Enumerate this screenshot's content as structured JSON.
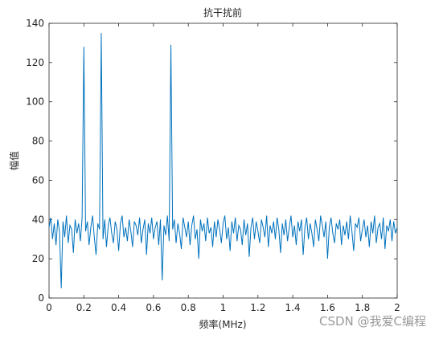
{
  "chart_data": {
    "type": "line",
    "title": "抗干扰前",
    "x_label": "频率(MHz)",
    "y_label": "幅值",
    "watermark": "CSDN @我爱C编程",
    "xlim": [
      0,
      2
    ],
    "ylim": [
      0,
      140
    ],
    "xticks": [
      0,
      0.2,
      0.4,
      0.6,
      0.8,
      1,
      1.2,
      1.4,
      1.6,
      1.8,
      2
    ],
    "yticks": [
      0,
      20,
      40,
      60,
      80,
      100,
      120,
      140
    ],
    "x": [
      0,
      0.01,
      0.02,
      0.03,
      0.04,
      0.05,
      0.06,
      0.07,
      0.08,
      0.09,
      0.1,
      0.11,
      0.12,
      0.13,
      0.14,
      0.15,
      0.16,
      0.17,
      0.18,
      0.19,
      0.2,
      0.21,
      0.22,
      0.23,
      0.24,
      0.25,
      0.26,
      0.27,
      0.28,
      0.29,
      0.3,
      0.31,
      0.32,
      0.33,
      0.34,
      0.35,
      0.36,
      0.37,
      0.38,
      0.39,
      0.4,
      0.41,
      0.42,
      0.43,
      0.44,
      0.45,
      0.46,
      0.47,
      0.48,
      0.49,
      0.5,
      0.51,
      0.52,
      0.53,
      0.54,
      0.55,
      0.56,
      0.57,
      0.58,
      0.59,
      0.6,
      0.61,
      0.62,
      0.63,
      0.64,
      0.65,
      0.66,
      0.67,
      0.68,
      0.69,
      0.7,
      0.71,
      0.72,
      0.73,
      0.74,
      0.75,
      0.76,
      0.77,
      0.78,
      0.79,
      0.8,
      0.81,
      0.82,
      0.83,
      0.84,
      0.85,
      0.86,
      0.87,
      0.88,
      0.89,
      0.9,
      0.91,
      0.92,
      0.93,
      0.94,
      0.95,
      0.96,
      0.97,
      0.98,
      0.99,
      1,
      1.01,
      1.02,
      1.03,
      1.04,
      1.05,
      1.06,
      1.07,
      1.08,
      1.09,
      1.1,
      1.11,
      1.12,
      1.13,
      1.14,
      1.15,
      1.16,
      1.17,
      1.18,
      1.19,
      1.2,
      1.21,
      1.22,
      1.23,
      1.24,
      1.25,
      1.26,
      1.27,
      1.28,
      1.29,
      1.3,
      1.31,
      1.32,
      1.33,
      1.34,
      1.35,
      1.36,
      1.37,
      1.38,
      1.39,
      1.4,
      1.41,
      1.42,
      1.43,
      1.44,
      1.45,
      1.46,
      1.47,
      1.48,
      1.49,
      1.5,
      1.51,
      1.52,
      1.53,
      1.54,
      1.55,
      1.56,
      1.57,
      1.58,
      1.59,
      1.6,
      1.61,
      1.62,
      1.63,
      1.64,
      1.65,
      1.66,
      1.67,
      1.68,
      1.69,
      1.7,
      1.71,
      1.72,
      1.73,
      1.74,
      1.75,
      1.76,
      1.77,
      1.78,
      1.79,
      1.8,
      1.81,
      1.82,
      1.83,
      1.84,
      1.85,
      1.86,
      1.87,
      1.88,
      1.89,
      1.9,
      1.91,
      1.92,
      1.93,
      1.94,
      1.95,
      1.96,
      1.97,
      1.98,
      1.99,
      2
    ],
    "series": [
      {
        "color": "#0072bd",
        "values": [
          36,
          41,
          30,
          38,
          27,
          40,
          34,
          5,
          39,
          31,
          42,
          28,
          37,
          35,
          23,
          40,
          33,
          38,
          29,
          41,
          128,
          34,
          39,
          27,
          36,
          42,
          31,
          22,
          38,
          35,
          135,
          30,
          40,
          26,
          37,
          41,
          33,
          28,
          39,
          35,
          24,
          38,
          42,
          31,
          36,
          29,
          40,
          34,
          26,
          39,
          37,
          32,
          41,
          28,
          35,
          40,
          22,
          38,
          33,
          41,
          30,
          36,
          39,
          27,
          40,
          9,
          37,
          32,
          42,
          29,
          129,
          35,
          40,
          28,
          38,
          33,
          25,
          41,
          36,
          31,
          39,
          27,
          37,
          42,
          30,
          35,
          20,
          40,
          34,
          38,
          29,
          41,
          33,
          36,
          26,
          39,
          31,
          40,
          35,
          28,
          38,
          42,
          30,
          36,
          24,
          39,
          33,
          41,
          29,
          37,
          35,
          27,
          40,
          32,
          38,
          21,
          36,
          41,
          30,
          39,
          34,
          28,
          40,
          36,
          31,
          42,
          26,
          37,
          33,
          39,
          30,
          41,
          35,
          23,
          38,
          32,
          40,
          29,
          36,
          42,
          31,
          37,
          27,
          39,
          34,
          40,
          22,
          36,
          41,
          30,
          38,
          33,
          26,
          40,
          35,
          29,
          42,
          37,
          31,
          39,
          20,
          36,
          41,
          33,
          28,
          38,
          35,
          40,
          27,
          37,
          32,
          39,
          30,
          42,
          34,
          24,
          38,
          36,
          41,
          29,
          35,
          40,
          31,
          37,
          26,
          39,
          33,
          42,
          28,
          36,
          38,
          30,
          41,
          25,
          37,
          34,
          40,
          29,
          39,
          33,
          36
        ]
      }
    ]
  }
}
